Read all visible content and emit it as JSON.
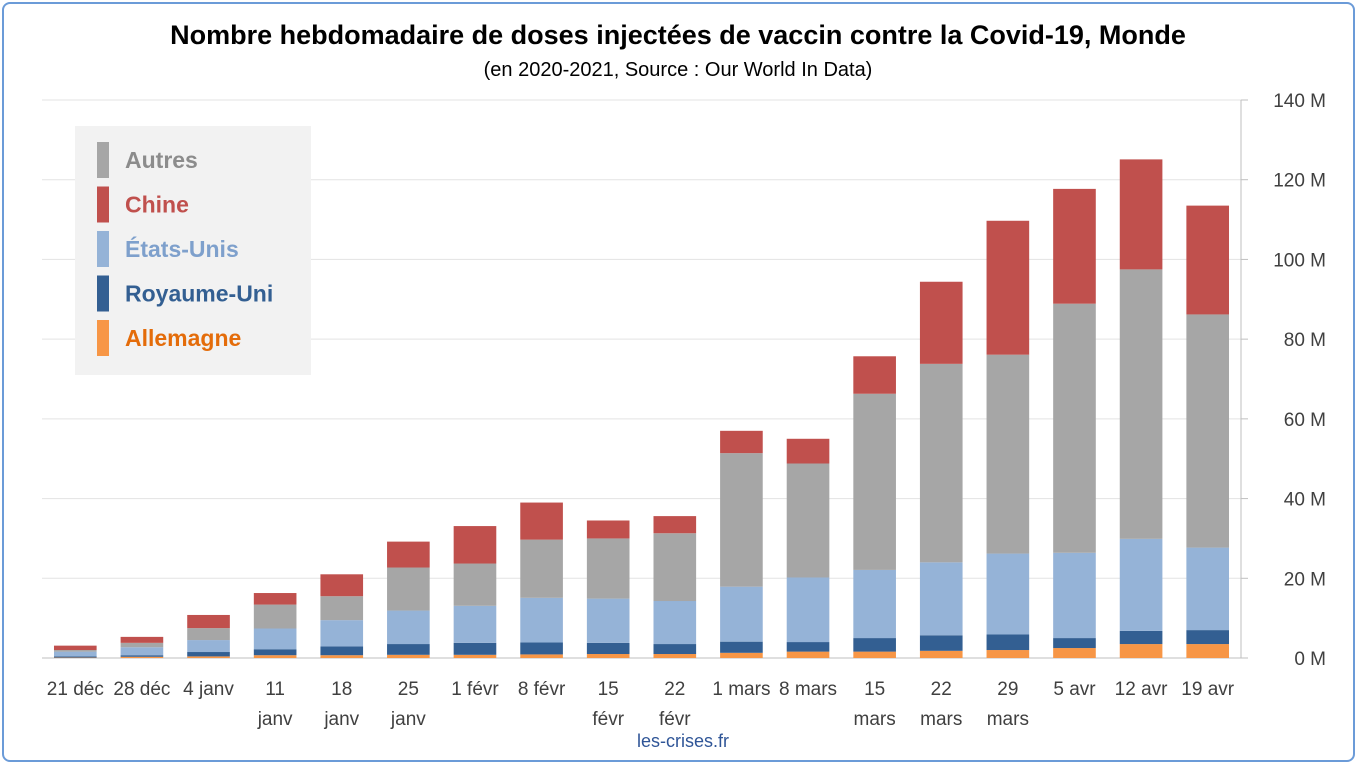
{
  "chart_data": {
    "type": "bar",
    "stacked": true,
    "title": "Nombre hebdomadaire de doses injectées de vaccin contre la Covid-19, Monde",
    "subtitle": "(en 2020-2021, Source : Our World In Data)",
    "source_label": "les-crises.fr",
    "ylim": [
      0,
      140
    ],
    "y_ticks": [
      {
        "value": 0,
        "label": "0 M"
      },
      {
        "value": 20,
        "label": "20 M"
      },
      {
        "value": 40,
        "label": "40 M"
      },
      {
        "value": 60,
        "label": "60 M"
      },
      {
        "value": 80,
        "label": "80 M"
      },
      {
        "value": 100,
        "label": "100 M"
      },
      {
        "value": 120,
        "label": "120 M"
      },
      {
        "value": 140,
        "label": "140 M"
      }
    ],
    "y_axis_position": "right",
    "grid": true,
    "legend_position": "top-left",
    "categories": [
      [
        "21 déc"
      ],
      [
        "28 déc"
      ],
      [
        "4 janv"
      ],
      [
        "11",
        "janv"
      ],
      [
        "18",
        "janv"
      ],
      [
        "25",
        "janv"
      ],
      [
        "1 févr"
      ],
      [
        "8 févr"
      ],
      [
        "15",
        "févr"
      ],
      [
        "22",
        "févr"
      ],
      [
        "1 mars"
      ],
      [
        "8 mars"
      ],
      [
        "15",
        "mars"
      ],
      [
        "22",
        "mars"
      ],
      [
        "29",
        "mars"
      ],
      [
        "5 avr"
      ],
      [
        "12 avr"
      ],
      [
        "19 avr"
      ]
    ],
    "series": [
      {
        "name": "Allemagne",
        "color": "#f79646",
        "values": [
          0.1,
          0.3,
          0.4,
          0.7,
          0.7,
          0.8,
          0.8,
          0.9,
          1.0,
          1.0,
          1.3,
          1.6,
          1.6,
          1.8,
          2.0,
          2.5,
          3.5,
          3.5
        ]
      },
      {
        "name": "Royaume-Uni",
        "color": "#335f92",
        "values": [
          0.3,
          0.4,
          1.1,
          1.5,
          2.2,
          2.7,
          3.0,
          3.0,
          2.8,
          2.5,
          2.8,
          2.4,
          3.4,
          3.9,
          3.9,
          2.5,
          3.3,
          3.5
        ]
      },
      {
        "name": "États-Unis",
        "color": "#95b3d7",
        "values": [
          1.2,
          2.0,
          3.0,
          5.2,
          6.6,
          8.4,
          9.3,
          11.2,
          11.1,
          10.8,
          13.8,
          16.2,
          17.1,
          18.3,
          20.3,
          21.4,
          23.1,
          20.7
        ]
      },
      {
        "name": "Autres",
        "color": "#a6a6a6",
        "values": [
          0.4,
          1.1,
          3.0,
          6.0,
          6.0,
          10.8,
          10.6,
          14.6,
          15.1,
          17.0,
          33.5,
          28.6,
          44.2,
          49.8,
          49.9,
          62.5,
          67.6,
          58.5
        ]
      },
      {
        "name": "Chine",
        "color": "#c0504d",
        "values": [
          1.1,
          1.5,
          3.3,
          2.9,
          5.5,
          6.5,
          9.4,
          9.3,
          4.5,
          4.3,
          5.6,
          6.2,
          9.4,
          20.6,
          33.6,
          28.8,
          27.6,
          27.3
        ]
      }
    ],
    "legend": [
      {
        "name": "Autres",
        "color": "#a6a6a6",
        "text_color": "#8c8c8c"
      },
      {
        "name": "Chine",
        "color": "#c0504d",
        "text_color": "#c0504d"
      },
      {
        "name": "États-Unis",
        "color": "#95b3d7",
        "text_color": "#7ea0cc"
      },
      {
        "name": "Royaume-Uni",
        "color": "#335f92",
        "text_color": "#335f92"
      },
      {
        "name": "Allemagne",
        "color": "#f79646",
        "text_color": "#e46c0a"
      }
    ]
  }
}
